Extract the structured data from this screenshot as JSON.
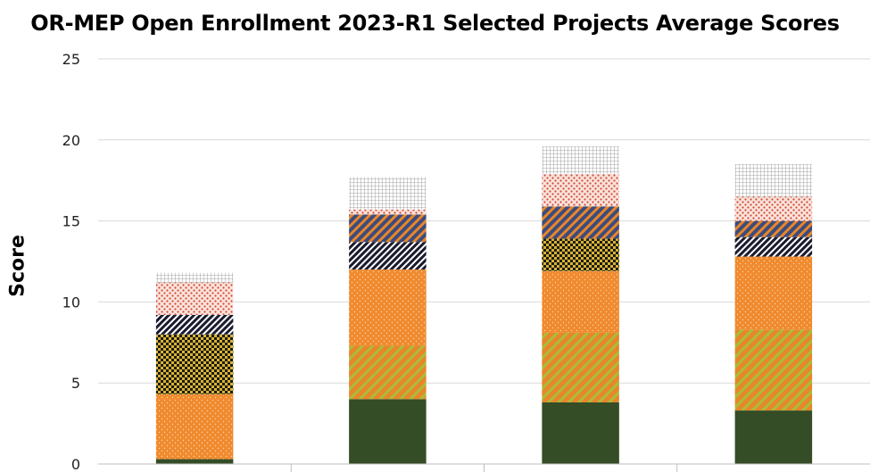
{
  "chart_data": {
    "type": "bar",
    "stacked": true,
    "title": "OR-MEP Open Enrollment 2023-R1 Selected Projects Average Scores",
    "ylabel": "Score",
    "xlabel": "",
    "ylim": [
      0,
      25
    ],
    "yticks": [
      0,
      5,
      10,
      15,
      20,
      25
    ],
    "grid": true,
    "categories": [
      "",
      "",
      "",
      ""
    ],
    "series": [
      {
        "values": [
          0.3,
          4.0,
          3.8,
          3.3
        ],
        "color": "#344d26",
        "pattern": "solid"
      },
      {
        "values": [
          0.0,
          3.3,
          4.3,
          5.0
        ],
        "color": "#e8862a",
        "pattern": "diagonal-yellow-stripes"
      },
      {
        "values": [
          4.0,
          4.7,
          3.8,
          4.5
        ],
        "color": "#f08a2e",
        "pattern": "speckle"
      },
      {
        "values": [
          3.7,
          0.0,
          2.0,
          0.0
        ],
        "color": "#000000",
        "pattern": "checker-yellow"
      },
      {
        "values": [
          1.2,
          1.7,
          0.0,
          1.2
        ],
        "color": "#1a1a2e",
        "pattern": "diagonal-white-stripes"
      },
      {
        "values": [
          0.0,
          1.7,
          2.0,
          1.0
        ],
        "color": "#3d4c7c",
        "pattern": "diagonal-orange-stripes"
      },
      {
        "values": [
          2.0,
          0.3,
          2.0,
          1.5
        ],
        "color": "#c0392b",
        "pattern": "dots-red"
      },
      {
        "values": [
          0.6,
          2.0,
          1.7,
          2.0
        ],
        "color": "#9a9a9a",
        "pattern": "grid"
      }
    ]
  }
}
